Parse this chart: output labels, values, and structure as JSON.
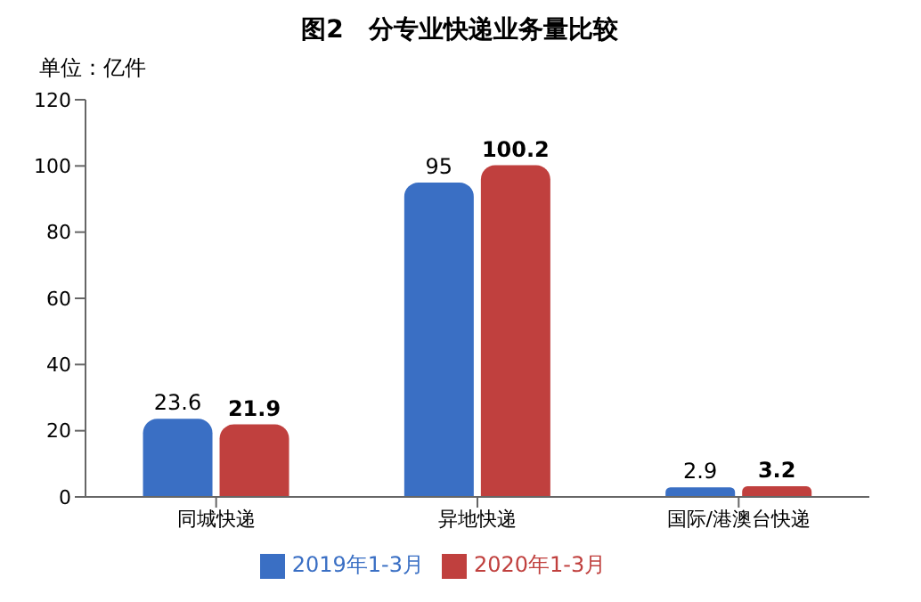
{
  "chart_data": {
    "type": "bar",
    "title": "图2　分专业快递业务量比较",
    "ylabel": "单位：亿件",
    "categories": [
      "同城快递",
      "异地快递",
      "国际/港澳台快递"
    ],
    "series": [
      {
        "name": "2019年1-3月",
        "color": "#3a6fc4",
        "values": [
          23.6,
          95,
          2.9
        ]
      },
      {
        "name": "2020年1-3月",
        "color": "#c0403e",
        "values": [
          21.9,
          100.2,
          3.2
        ]
      }
    ],
    "ylim": [
      0,
      120
    ],
    "yticks": [
      0,
      20,
      40,
      60,
      80,
      100,
      120
    ],
    "grid": false,
    "legend": "bottom",
    "data_labels": true
  }
}
